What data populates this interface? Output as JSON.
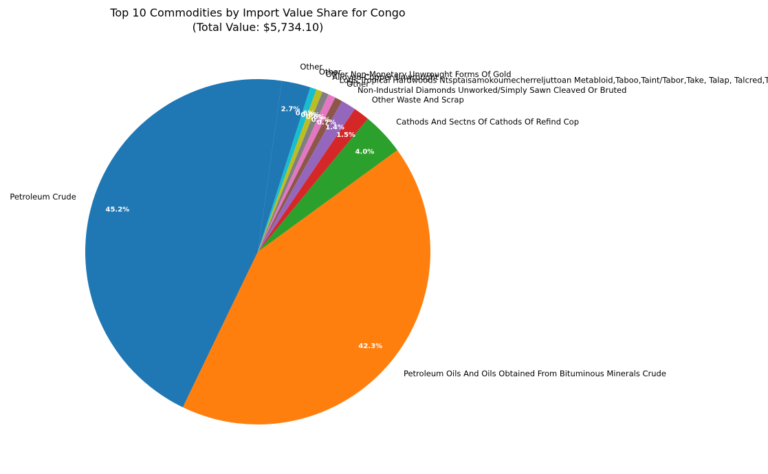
{
  "chart_data": {
    "type": "pie",
    "title": "Top 10 Commodities by Import Value Share for Congo",
    "subtitle": "(Total Value: $5,734.10)",
    "start_angle_deg": 82,
    "direction": "counterclockwise",
    "slices": [
      {
        "label": "Petroleum Crude",
        "value": 45.2,
        "pct_label": "45.2%",
        "color": "#1f77b4"
      },
      {
        "label": "Petroleum Oils And Oils Obtained From Bituminous Minerals Crude",
        "value": 42.3,
        "pct_label": "42.3%",
        "color": "#ff7f0e"
      },
      {
        "label": "Cathods And Sectns Of Cathods Of Refind Cop",
        "value": 4.0,
        "pct_label": "4.0%",
        "color": "#2ca02c"
      },
      {
        "label": "Other Waste And Scrap",
        "value": 1.5,
        "pct_label": "1.5%",
        "color": "#d62728"
      },
      {
        "label": "Non-Industrial Diamonds Unworked/Simply Sawn Cleaved Or Bruted",
        "value": 1.4,
        "pct_label": "1.4%",
        "color": "#9467bd"
      },
      {
        "label": "Other",
        "value": 0.7,
        "pct_label": "0.7%",
        "color": "#8c564b"
      },
      {
        "label": "Logs,Tropical Hardwoods Ntsptaisamokoumecherreljuttoan Metabloid,Taboo,Taint/Tabor,Take, Talap, Talcred,Taldack,Taldon,Ta",
        "value": 0.7,
        "pct_label": "0.7%",
        "color": "#e377c2"
      },
      {
        "label": "Alloyed Copper Unwrought",
        "value": 0.6,
        "pct_label": "0.6%",
        "color": "#7f7f7f"
      },
      {
        "label": "Other Non-Monetary Unwrought Forms Of Gold",
        "value": 0.6,
        "pct_label": "0.6%",
        "color": "#bcbd22"
      },
      {
        "label": "Other",
        "value": 0.6,
        "pct_label": "0.6%",
        "color": "#17becf"
      },
      {
        "label": "Other",
        "value": 2.7,
        "pct_label": "2.7%",
        "color": "#1f77b4"
      }
    ]
  }
}
